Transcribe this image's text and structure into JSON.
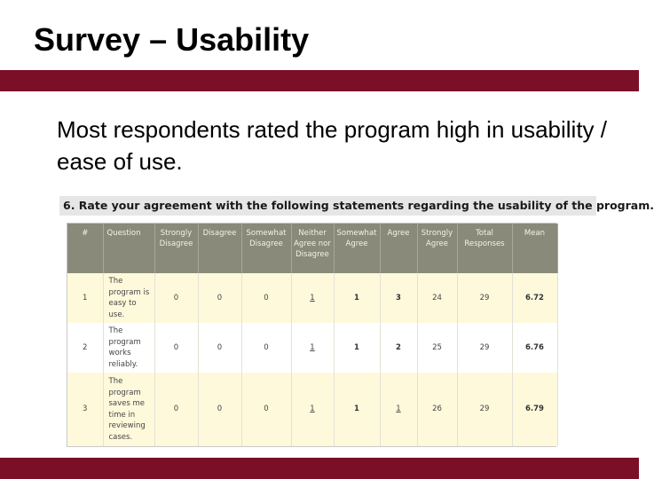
{
  "slide": {
    "title": "Survey – Usability",
    "body": "Most respondents rated the program high in usability / ease of use.",
    "accent_color": "#7a0f27"
  },
  "survey_table": {
    "question_heading": "6.  Rate your agreement with the following statements regarding the usability of the program.",
    "columns": [
      "#",
      "Question",
      "Strongly Disagree",
      "Disagree",
      "Somewhat Disagree",
      "Neither Agree nor Disagree",
      "Somewhat Agree",
      "Agree",
      "Strongly Agree",
      "Total Responses",
      "Mean"
    ],
    "rows": [
      [
        "1",
        "The program is easy to use.",
        "0",
        "0",
        "0",
        "1",
        "1",
        "3",
        "24",
        "29",
        "6.72"
      ],
      [
        "2",
        "The program works reliably.",
        "0",
        "0",
        "0",
        "1",
        "1",
        "2",
        "25",
        "29",
        "6.76"
      ],
      [
        "3",
        "The program saves me time in reviewing cases.",
        "0",
        "0",
        "0",
        "1",
        "1",
        "1",
        "26",
        "29",
        "6.79"
      ]
    ]
  }
}
